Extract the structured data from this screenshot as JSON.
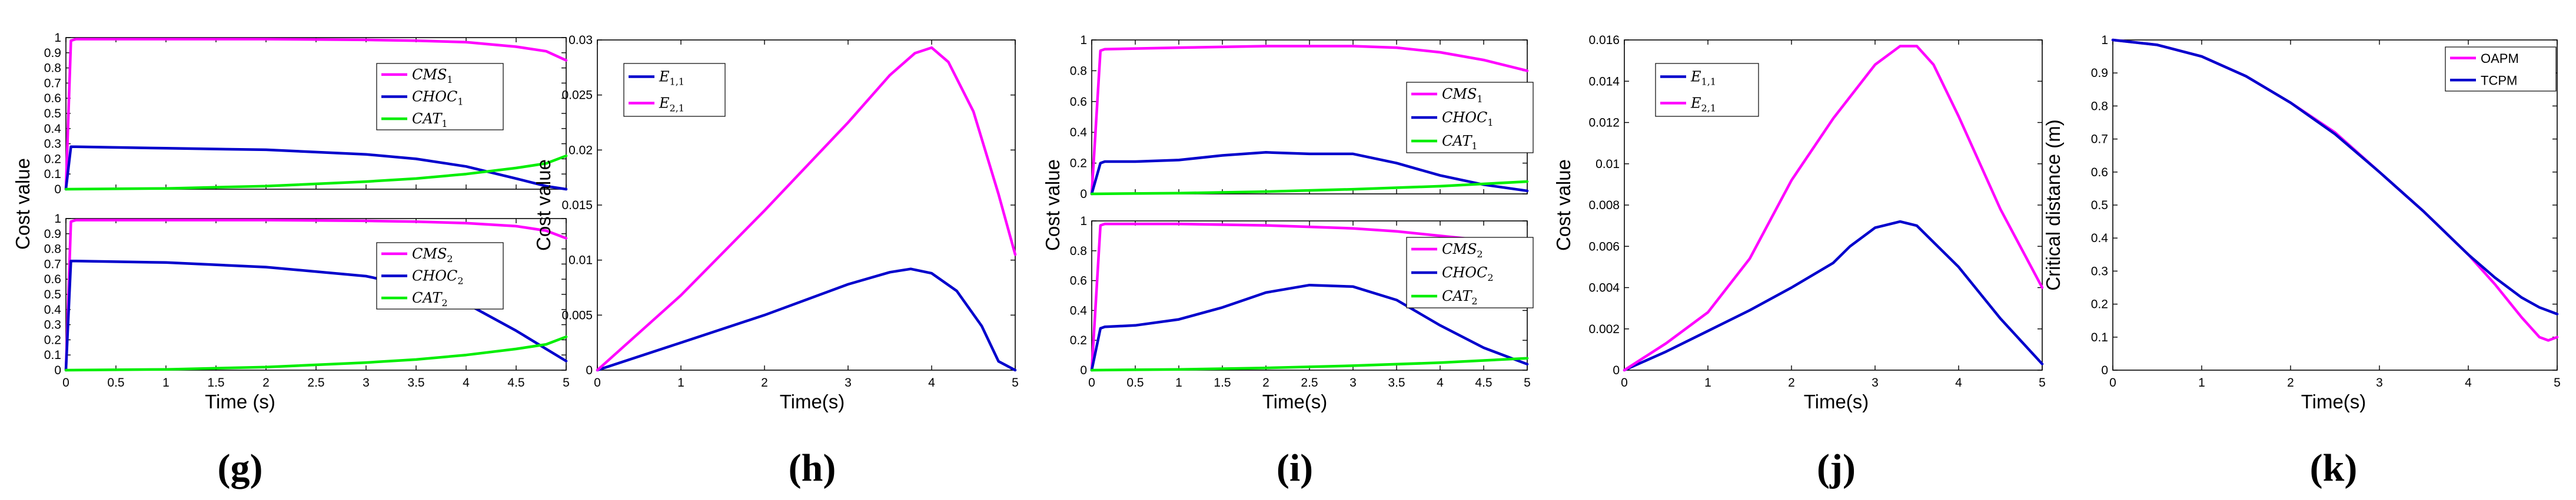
{
  "chart_data": [
    {
      "id": "g",
      "type": "line",
      "panel_label": "(g)",
      "xlabel": "Time (s)",
      "ylabel": "Cost value",
      "subplots": [
        {
          "xlim": [
            0,
            5
          ],
          "ylim": [
            0,
            1
          ],
          "yticks": [
            "0",
            "0.1",
            "0.2",
            "0.3",
            "0.4",
            "0.5",
            "0.6",
            "0.7",
            "0.8",
            "0.9",
            "1"
          ],
          "series": [
            {
              "name": "CMS",
              "sub": "1",
              "color": "#ff00ff",
              "x": [
                0,
                0.05,
                0.1,
                1,
                2,
                3,
                3.5,
                4,
                4.5,
                4.8,
                5
              ],
              "y": [
                0,
                0.98,
                0.99,
                0.99,
                0.99,
                0.985,
                0.98,
                0.97,
                0.94,
                0.91,
                0.85
              ]
            },
            {
              "name": "CHOC",
              "sub": "1",
              "color": "#0000cc",
              "x": [
                0,
                0.05,
                0.1,
                1,
                2,
                3,
                3.5,
                4,
                4.5,
                4.8,
                5
              ],
              "y": [
                0,
                0.28,
                0.28,
                0.27,
                0.26,
                0.23,
                0.2,
                0.15,
                0.07,
                0.02,
                0.0
              ]
            },
            {
              "name": "CAT",
              "sub": "1",
              "color": "#00ee00",
              "x": [
                0,
                1,
                2,
                3,
                3.5,
                4,
                4.5,
                4.8,
                5
              ],
              "y": [
                0,
                0.005,
                0.02,
                0.05,
                0.07,
                0.1,
                0.14,
                0.17,
                0.22
              ]
            }
          ],
          "xticks": []
        },
        {
          "xlim": [
            0,
            5
          ],
          "ylim": [
            0,
            1
          ],
          "yticks": [
            "0",
            "0.1",
            "0.2",
            "0.3",
            "0.4",
            "0.5",
            "0.6",
            "0.7",
            "0.8",
            "0.9",
            "1"
          ],
          "xticks": [
            "0",
            "0.5",
            "1",
            "1.5",
            "2",
            "2.5",
            "3",
            "3.5",
            "4",
            "4.5",
            "5"
          ],
          "series": [
            {
              "name": "CMS",
              "sub": "2",
              "color": "#ff00ff",
              "x": [
                0,
                0.05,
                0.1,
                1,
                2,
                3,
                3.5,
                4,
                4.5,
                4.8,
                5
              ],
              "y": [
                0,
                0.98,
                0.99,
                0.99,
                0.99,
                0.985,
                0.98,
                0.97,
                0.95,
                0.92,
                0.87
              ]
            },
            {
              "name": "CHOC",
              "sub": "2",
              "color": "#0000cc",
              "x": [
                0,
                0.05,
                0.1,
                1,
                2,
                3,
                3.5,
                4,
                4.5,
                4.8,
                5
              ],
              "y": [
                0,
                0.72,
                0.72,
                0.71,
                0.68,
                0.62,
                0.55,
                0.44,
                0.26,
                0.14,
                0.06
              ]
            },
            {
              "name": "CAT",
              "sub": "2",
              "color": "#00ee00",
              "x": [
                0,
                1,
                2,
                3,
                3.5,
                4,
                4.5,
                4.8,
                5
              ],
              "y": [
                0,
                0.005,
                0.02,
                0.05,
                0.07,
                0.1,
                0.14,
                0.17,
                0.22
              ]
            }
          ]
        }
      ]
    },
    {
      "id": "h",
      "type": "line",
      "panel_label": "(h)",
      "xlabel": "Time(s)",
      "ylabel": "Cost value",
      "xlim": [
        0,
        5
      ],
      "ylim": [
        0,
        0.03
      ],
      "xticks": [
        "0",
        "1",
        "2",
        "3",
        "4",
        "5"
      ],
      "yticks": [
        "0",
        "0.005",
        "0.01",
        "0.015",
        "0.02",
        "0.025",
        "0.03"
      ],
      "series": [
        {
          "name": "E",
          "sub": "1,1",
          "color": "#0000cc",
          "x": [
            0,
            1,
            2,
            3,
            3.5,
            3.75,
            4,
            4.3,
            4.6,
            4.8,
            5
          ],
          "y": [
            0,
            0.0025,
            0.005,
            0.0078,
            0.0089,
            0.0092,
            0.0088,
            0.0072,
            0.004,
            0.0008,
            0
          ]
        },
        {
          "name": "E",
          "sub": "2,1",
          "color": "#ff00ff",
          "x": [
            0,
            1,
            2,
            3,
            3.5,
            3.8,
            4,
            4.2,
            4.5,
            4.8,
            5
          ],
          "y": [
            0,
            0.0068,
            0.0145,
            0.0225,
            0.0268,
            0.0288,
            0.0293,
            0.028,
            0.0235,
            0.016,
            0.0105
          ]
        }
      ]
    },
    {
      "id": "i",
      "type": "line",
      "panel_label": "(i)",
      "xlabel": "Time(s)",
      "ylabel": "Cost value",
      "subplots": [
        {
          "xlim": [
            0,
            5
          ],
          "ylim": [
            0,
            1
          ],
          "yticks": [
            "0",
            "0.2",
            "0.4",
            "0.6",
            "0.8",
            "1"
          ],
          "xticks": [],
          "series": [
            {
              "name": "CMS",
              "sub": "1",
              "color": "#ff00ff",
              "x": [
                0,
                0.1,
                0.15,
                1,
                2,
                3,
                3.5,
                4,
                4.5,
                5
              ],
              "y": [
                0,
                0.93,
                0.94,
                0.95,
                0.96,
                0.96,
                0.95,
                0.92,
                0.87,
                0.8
              ]
            },
            {
              "name": "CHOC",
              "sub": "1",
              "color": "#0000cc",
              "x": [
                0,
                0.1,
                0.15,
                0.5,
                1,
                1.5,
                2,
                2.5,
                3,
                3.5,
                4,
                4.5,
                5
              ],
              "y": [
                0,
                0.2,
                0.21,
                0.21,
                0.22,
                0.25,
                0.27,
                0.26,
                0.26,
                0.2,
                0.12,
                0.06,
                0.02
              ]
            },
            {
              "name": "CAT",
              "sub": "1",
              "color": "#00ee00",
              "x": [
                0,
                1,
                2,
                3,
                4,
                5
              ],
              "y": [
                0,
                0.005,
                0.015,
                0.03,
                0.05,
                0.08
              ]
            }
          ]
        },
        {
          "xlim": [
            0,
            5
          ],
          "ylim": [
            0,
            1
          ],
          "yticks": [
            "0",
            "0.2",
            "0.4",
            "0.6",
            "0.8",
            "1"
          ],
          "xticks": [
            "0",
            "0.5",
            "1",
            "1.5",
            "2",
            "2.5",
            "3",
            "3.5",
            "4",
            "4.5",
            "5"
          ],
          "series": [
            {
              "name": "CMS",
              "sub": "2",
              "color": "#ff00ff",
              "x": [
                0,
                0.1,
                0.15,
                1,
                2,
                3,
                3.5,
                4,
                4.5,
                5
              ],
              "y": [
                0,
                0.97,
                0.98,
                0.98,
                0.97,
                0.95,
                0.93,
                0.9,
                0.87,
                0.83
              ]
            },
            {
              "name": "CHOC",
              "sub": "2",
              "color": "#0000cc",
              "x": [
                0,
                0.1,
                0.15,
                0.5,
                1,
                1.5,
                2,
                2.5,
                3,
                3.5,
                4,
                4.5,
                5
              ],
              "y": [
                0,
                0.28,
                0.29,
                0.3,
                0.34,
                0.42,
                0.52,
                0.57,
                0.56,
                0.47,
                0.3,
                0.15,
                0.04
              ]
            },
            {
              "name": "CAT",
              "sub": "2",
              "color": "#00ee00",
              "x": [
                0,
                1,
                2,
                3,
                4,
                5
              ],
              "y": [
                0,
                0.005,
                0.015,
                0.03,
                0.05,
                0.08
              ]
            }
          ]
        }
      ]
    },
    {
      "id": "j",
      "type": "line",
      "panel_label": "(j)",
      "xlabel": "Time(s)",
      "ylabel": "Cost value",
      "xlim": [
        0,
        5
      ],
      "ylim": [
        0,
        0.016
      ],
      "xticks": [
        "0",
        "1",
        "2",
        "3",
        "4",
        "5"
      ],
      "yticks": [
        "0",
        "0.002",
        "0.004",
        "0.006",
        "0.008",
        "0.01",
        "0.012",
        "0.014",
        "0.016"
      ],
      "series": [
        {
          "name": "E",
          "sub": "1,1",
          "color": "#0000cc",
          "x": [
            0,
            0.5,
            1,
            1.5,
            2,
            2.5,
            2.7,
            3,
            3.3,
            3.5,
            4,
            4.5,
            5
          ],
          "y": [
            0,
            0.0009,
            0.0019,
            0.0029,
            0.004,
            0.0052,
            0.006,
            0.0069,
            0.0072,
            0.007,
            0.005,
            0.0025,
            0.0003
          ]
        },
        {
          "name": "E",
          "sub": "2,1",
          "color": "#ff00ff",
          "x": [
            0,
            0.5,
            1,
            1.5,
            2,
            2.5,
            3,
            3.3,
            3.5,
            3.7,
            4,
            4.5,
            5
          ],
          "y": [
            0,
            0.0013,
            0.0028,
            0.0054,
            0.0092,
            0.0122,
            0.0148,
            0.0157,
            0.0157,
            0.0148,
            0.0123,
            0.0078,
            0.004
          ]
        }
      ]
    },
    {
      "id": "k",
      "type": "line",
      "panel_label": "(k)",
      "xlabel": "Time(s)",
      "ylabel": "Critical distance (m)",
      "xlim": [
        0,
        5
      ],
      "ylim": [
        0,
        1
      ],
      "xticks": [
        "0",
        "1",
        "2",
        "3",
        "4",
        "5"
      ],
      "yticks": [
        "0",
        "0.1",
        "0.2",
        "0.3",
        "0.4",
        "0.5",
        "0.6",
        "0.7",
        "0.8",
        "0.9",
        "1"
      ],
      "series": [
        {
          "name": "OAPM",
          "sub": "",
          "color": "#ff00ff",
          "x": [
            0,
            0.5,
            1,
            1.5,
            2,
            2.5,
            3,
            3.5,
            4,
            4.3,
            4.6,
            4.8,
            4.9,
            5
          ],
          "y": [
            1,
            0.985,
            0.95,
            0.89,
            0.81,
            0.72,
            0.6,
            0.48,
            0.35,
            0.26,
            0.16,
            0.1,
            0.09,
            0.1
          ]
        },
        {
          "name": "TCPM",
          "sub": "",
          "color": "#0000cc",
          "x": [
            0,
            0.5,
            1,
            1.5,
            2,
            2.5,
            3,
            3.5,
            4,
            4.3,
            4.6,
            4.8,
            5
          ],
          "y": [
            1,
            0.985,
            0.95,
            0.89,
            0.81,
            0.715,
            0.6,
            0.48,
            0.35,
            0.28,
            0.22,
            0.19,
            0.17
          ]
        }
      ]
    }
  ]
}
